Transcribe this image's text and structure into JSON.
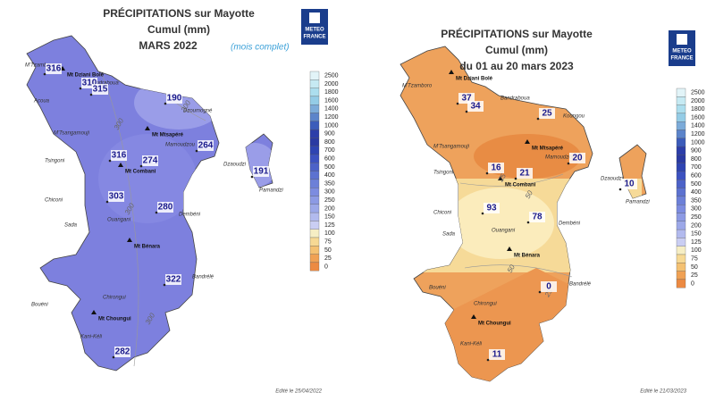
{
  "panels": [
    {
      "title": "PRÉCIPITATIONS sur Mayotte",
      "subtitle": "Cumul (mm)",
      "period": "MARS 2022",
      "note": "(mois complet)",
      "logo": [
        "METEO",
        "FRANCE"
      ],
      "places": [
        "M'Tzamboro",
        "Mt Dziani Bolé",
        "Bandraboua",
        "Acoua",
        "Dzoumogné",
        "M'Tsangamouji",
        "Mt Mtsapéré",
        "Mamoudzou",
        "Tsingoni",
        "Mt Combani",
        "Dzaoudzi",
        "Pamandzi",
        "Chiconi",
        "Ouangani",
        "Dembéni",
        "Sada",
        "Mt Bénara",
        "Bandrélé",
        "Bouéni",
        "Chirongui",
        "Mt Choungui",
        "Kani-Kéli"
      ],
      "stations": [
        316,
        310,
        315,
        190,
        264,
        191,
        316,
        274,
        303,
        280,
        322,
        282
      ],
      "isolines": [
        200,
        300,
        300,
        300
      ],
      "legend": [
        2500,
        2000,
        1800,
        1600,
        1400,
        1200,
        1000,
        900,
        800,
        700,
        600,
        500,
        400,
        350,
        300,
        250,
        200,
        150,
        125,
        100,
        75,
        50,
        25,
        0
      ],
      "edited": "Edité le 25/04/2022"
    },
    {
      "title": "PRÉCIPITATIONS sur Mayotte",
      "subtitle": "Cumul (mm)",
      "period": "du 01 au 20 mars 2023",
      "logo": [
        "METEO",
        "FRANCE"
      ],
      "places": [
        "M'Tzamboro",
        "Mt Dziani Bolé",
        "Bandraboua",
        "Koungou",
        "M'Tsangamouji",
        "Mt Mtsapéré",
        "Mamoudzou",
        "Tsingoni",
        "Mt Combani",
        "Dzaoudzi",
        "Pamandzi",
        "Chiconi",
        "Ouangani",
        "Dembéni",
        "Sada",
        "Mt Bénara",
        "Bandrélé",
        "Bouéni",
        "Chirongui",
        "Mt Choungui",
        "Kani-Kéli"
      ],
      "stations": [
        37,
        34,
        25,
        16,
        21,
        20,
        10,
        93,
        78,
        0,
        11
      ],
      "isolines": [
        25,
        50,
        50,
        25
      ],
      "legend": [
        2500,
        2000,
        1800,
        1600,
        1400,
        1200,
        1000,
        900,
        800,
        700,
        600,
        500,
        400,
        350,
        300,
        250,
        200,
        150,
        125,
        100,
        75,
        50,
        25,
        0
      ],
      "edited": "Edité le 21/03/2023"
    }
  ],
  "legend_colors": [
    "#e2f4f8",
    "#c6eaf3",
    "#acdeee",
    "#94cce6",
    "#7cabd9",
    "#5c84ca",
    "#3c5cba",
    "#2c3ea9",
    "#2a3aa2",
    "#2e44b2",
    "#3c52c0",
    "#4c62c8",
    "#5c72d0",
    "#6c80d8",
    "#7c8ce0",
    "#8c9ae4",
    "#9ca8e8",
    "#b2baee",
    "#cacef3",
    "#f6eec4",
    "#f7d994",
    "#f4c172",
    "#f0a154",
    "#ec8a42"
  ]
}
